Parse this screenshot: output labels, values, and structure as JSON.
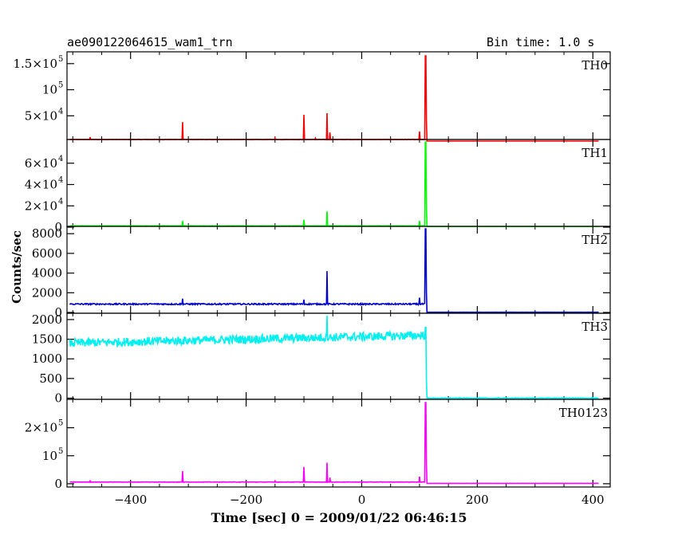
{
  "header": {
    "obs_id": "ae090122064615_wam1_trn",
    "bin_time": "Bin time: 1.0 s"
  },
  "xlabel": "Time [sec] 0 = 2009/01/22 06:46:15",
  "ylabel": "Counts/sec",
  "chart_data": {
    "type": "line",
    "x_range": [
      -510,
      430
    ],
    "x_ticks": [
      -400,
      -200,
      0,
      200,
      400
    ],
    "panels": [
      {
        "name": "TH0",
        "color": "#ff0000",
        "ylim": [
          0,
          165000
        ],
        "y_ticks": [
          {
            "v": 50000,
            "label": "5×10",
            "exp": "4"
          },
          {
            "v": 100000,
            "label": "10",
            "exp": "5"
          },
          {
            "v": 150000,
            "label": "1.5×10",
            "exp": "5"
          }
        ],
        "baseline": 4500,
        "noise": 400,
        "post_level": 1500,
        "spikes": [
          [
            -470,
            9000
          ],
          [
            -310,
            38000
          ],
          [
            -150,
            7000
          ],
          [
            -100,
            52000
          ],
          [
            -60,
            55000
          ],
          [
            -55,
            18000
          ],
          [
            -80,
            7000
          ],
          [
            100,
            20000
          ],
          [
            110,
            165000
          ]
        ]
      },
      {
        "name": "TH1",
        "color": "#00ff00",
        "ylim": [
          0,
          80000
        ],
        "y_ticks": [
          {
            "v": 0,
            "label": "0"
          },
          {
            "v": 20000,
            "label": "2×10",
            "exp": "4"
          },
          {
            "v": 40000,
            "label": "4×10",
            "exp": "4"
          },
          {
            "v": 60000,
            "label": "6×10",
            "exp": "4"
          }
        ],
        "baseline": 1200,
        "noise": 150,
        "post_level": 600,
        "spikes": [
          [
            -310,
            6000
          ],
          [
            -100,
            7000
          ],
          [
            -60,
            15000
          ],
          [
            100,
            6000
          ],
          [
            110,
            80000
          ]
        ]
      },
      {
        "name": "TH2",
        "color": "#0000cc",
        "ylim": [
          0,
          8500
        ],
        "y_ticks": [
          {
            "v": 0,
            "label": "0"
          },
          {
            "v": 2000,
            "label": "2000"
          },
          {
            "v": 4000,
            "label": "4000"
          },
          {
            "v": 6000,
            "label": "6000"
          },
          {
            "v": 8000,
            "label": "8000"
          }
        ],
        "baseline": 850,
        "noise": 70,
        "post_level": 20,
        "spikes": [
          [
            -310,
            1400
          ],
          [
            -100,
            1300
          ],
          [
            -60,
            4200
          ],
          [
            100,
            1500
          ],
          [
            110,
            8500
          ]
        ]
      },
      {
        "name": "TH3",
        "color": "#00f0f0",
        "ylim": [
          -30,
          2100
        ],
        "y_ticks": [
          {
            "v": 0,
            "label": "0"
          },
          {
            "v": 500,
            "label": "500"
          },
          {
            "v": 1000,
            "label": "1000"
          },
          {
            "v": 1500,
            "label": "1500"
          },
          {
            "v": 2000,
            "label": "2000"
          }
        ],
        "baseline": 1400,
        "baseline_end": 1600,
        "noise": 110,
        "post_level": 0,
        "spikes": [
          [
            -60,
            2100
          ],
          [
            110,
            1800
          ]
        ]
      },
      {
        "name": "TH0123",
        "color": "#ff00ff",
        "ylim": [
          -6000,
          290000
        ],
        "y_ticks": [
          {
            "v": 0,
            "label": "0"
          },
          {
            "v": 100000,
            "label": "10",
            "exp": "5"
          },
          {
            "v": 200000,
            "label": "2×10",
            "exp": "5"
          }
        ],
        "baseline": 6000,
        "noise": 700,
        "post_level": 1500,
        "spikes": [
          [
            -470,
            10000
          ],
          [
            -310,
            45000
          ],
          [
            -150,
            10000
          ],
          [
            -100,
            60000
          ],
          [
            -60,
            75000
          ],
          [
            -55,
            22000
          ],
          [
            100,
            25000
          ],
          [
            110,
            290000
          ]
        ]
      }
    ]
  }
}
